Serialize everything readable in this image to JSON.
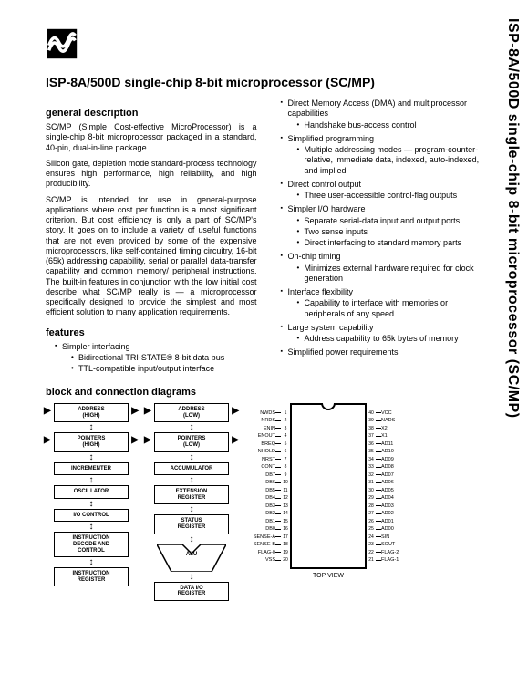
{
  "sideTitle": "ISP-8A/500D single-chip 8-bit microprocessor (SC/MP)",
  "title": "ISP-8A/500D single-chip 8-bit microprocessor (SC/MP)",
  "h_general": "general description",
  "h_features": "features",
  "h_diagrams": "block and connection diagrams",
  "para1": "SC/MP (Simple Cost-effective MicroProcessor) is a single-chip 8-bit microprocessor packaged in a standard, 40-pin, dual-in-line package.",
  "para2": "Silicon gate, depletion mode standard-process technology ensures high performance, high reliability, and high producibility.",
  "para3": "SC/MP is intended for use in general-purpose applications where cost per function is a most significant criterion. But cost efficiency is only a part of SC/MP's story. It goes on to include a variety of useful functions that are not even provided by some of the expensive microprocessors, like self-contained timing circuitry, 16-bit (65k) addressing capability, serial or parallel data-transfer capability and common memory/ peripheral instructions. The built-in features in conjunction with the low initial cost describe what SC/MP really is — a microprocessor specifically designed to provide the simplest and most efficient solution to many application requirements.",
  "feat_left": [
    "Simpler interfacing",
    [
      "Bidirectional TRI-STATE® 8-bit data bus",
      "TTL-compatible input/output interface"
    ]
  ],
  "feat_right": [
    [
      "Direct Memory Access (DMA) and multiprocessor capabilities",
      [
        "Handshake bus-access control"
      ]
    ],
    [
      "Simplified programming",
      [
        "Multiple addressing modes — program-counter-relative, immediate data, indexed, auto-indexed, and implied"
      ]
    ],
    [
      "Direct control output",
      [
        "Three user-accessible control-flag outputs"
      ]
    ],
    [
      "Simpler I/O hardware",
      [
        "Separate serial-data input and output ports",
        "Two sense inputs",
        "Direct interfacing to standard memory parts"
      ]
    ],
    [
      "On-chip timing",
      [
        "Minimizes external hardware required for clock generation"
      ]
    ],
    [
      "Interface flexibility",
      [
        "Capability to interface with memories or peripherals of any speed"
      ]
    ],
    [
      "Large system capability",
      [
        "Address capability to 65k bytes of memory"
      ]
    ],
    [
      "Simplified power requirements",
      []
    ]
  ],
  "blocks_left": [
    "ADDRESS\n(HIGH)",
    "POINTERS\n(HIGH)",
    "INCREMENTER",
    "OSCILLATOR",
    "I/O CONTROL",
    "INSTRUCTION\nDECODE AND\nCONTROL",
    "INSTRUCTION\nREGISTER"
  ],
  "blocks_right": [
    "ADDRESS\n(LOW)",
    "POINTERS\n(LOW)",
    "ACCUMULATOR",
    "EXTENSION\nREGISTER",
    "STATUS\nREGISTER",
    "ALU",
    "DATA I/O\nREGISTER"
  ],
  "topView": "TOP VIEW",
  "pins_left": [
    "NWDS",
    "NRDS",
    "ENIN",
    "ENOUT",
    "BREQ",
    "NHOLD",
    "NRST",
    "CONT",
    "DB7",
    "DB6",
    "DB5",
    "DB4",
    "DB3",
    "DB2",
    "DB1",
    "DB0",
    "SENSE-A",
    "SENSE-B",
    "FLAG-0",
    "VSS"
  ],
  "pins_right": [
    "VCC",
    "NADS",
    "X2",
    "X1",
    "AD11",
    "AD10",
    "AD09",
    "AD08",
    "AD07",
    "AD06",
    "AD05",
    "AD04",
    "AD03",
    "AD02",
    "AD01",
    "AD00",
    "SIN",
    "SOUT",
    "FLAG-2",
    "FLAG-1"
  ]
}
